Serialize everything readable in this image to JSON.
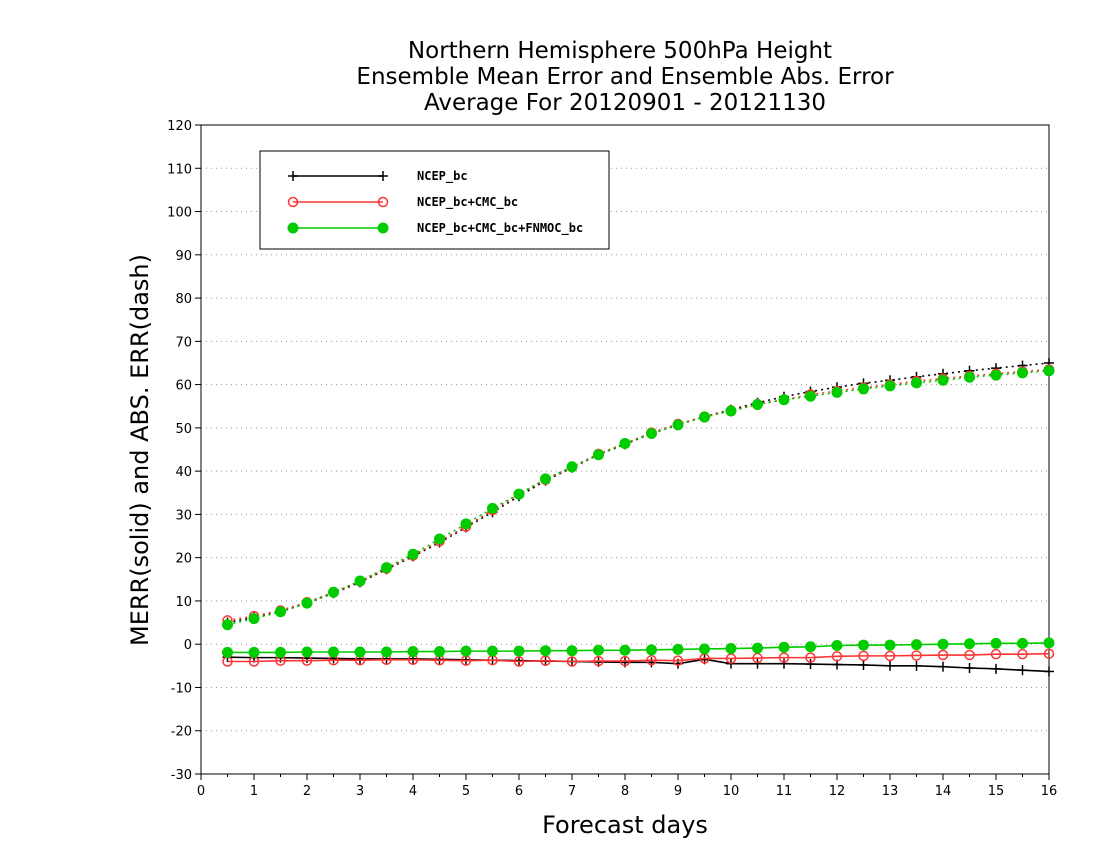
{
  "chart_data": {
    "type": "line",
    "title_lines": [
      "Northern Hemisphere 500hPa Height",
      "Ensemble Mean Error and Ensemble Abs. Error",
      "Average For 20120901 - 20121130"
    ],
    "xlabel": "Forecast days",
    "ylabel": "MERR(solid) and ABS. ERR(dash)",
    "xlim": [
      0,
      16
    ],
    "ylim": [
      -30,
      120
    ],
    "xticks": [
      0,
      1,
      2,
      3,
      4,
      5,
      6,
      7,
      8,
      9,
      10,
      11,
      12,
      13,
      14,
      15,
      16
    ],
    "yticks": [
      -30,
      -20,
      -10,
      0,
      10,
      20,
      30,
      40,
      50,
      60,
      70,
      80,
      90,
      100,
      110,
      120
    ],
    "grid": "horizontal dotted",
    "legend_position": "top-left",
    "x": [
      0.5,
      1,
      1.5,
      2,
      2.5,
      3,
      3.5,
      4,
      4.5,
      5,
      5.5,
      6,
      6.5,
      7,
      7.5,
      8,
      8.5,
      9,
      9.5,
      10,
      10.5,
      11,
      11.5,
      12,
      12.5,
      13,
      13.5,
      14,
      14.5,
      15,
      15.5,
      16
    ],
    "series": [
      {
        "name": "NCEP_bc",
        "color": "#000000",
        "marker": "plus",
        "abs_err": [
          5,
          6.2,
          7.5,
          9.5,
          11.8,
          14.3,
          17.3,
          20.3,
          23.5,
          27,
          30.5,
          34.2,
          37.8,
          40.8,
          43.8,
          46.2,
          48.7,
          50.7,
          52.6,
          54.2,
          55.8,
          57.2,
          58.4,
          59.4,
          60.3,
          61,
          61.8,
          62.5,
          63.2,
          63.8,
          64.4,
          65
        ],
        "mean_err": [
          -3,
          -3.1,
          -3.1,
          -3.2,
          -3.3,
          -3.4,
          -3.4,
          -3.4,
          -3.5,
          -3.6,
          -3.7,
          -3.8,
          -3.9,
          -4,
          -4.1,
          -4.2,
          -4.2,
          -4.5,
          -3.5,
          -4.5,
          -4.5,
          -4.5,
          -4.6,
          -4.7,
          -4.8,
          -5,
          -5,
          -5.2,
          -5.5,
          -5.7,
          -6,
          -6.3
        ]
      },
      {
        "name": "NCEP_bc+CMC_bc",
        "color": "#ff3333",
        "marker": "open-circle",
        "abs_err": [
          5.5,
          6.5,
          7.8,
          9.7,
          12,
          14.5,
          17.5,
          20.5,
          23.8,
          27.2,
          31,
          34.7,
          38,
          41,
          44,
          46.4,
          48.9,
          50.9,
          52.6,
          54,
          55.5,
          56.5,
          57.7,
          58.5,
          59.3,
          60,
          60.8,
          61.4,
          62,
          62.5,
          63,
          63.5
        ],
        "mean_err": [
          -4,
          -4,
          -3.8,
          -3.8,
          -3.7,
          -3.7,
          -3.6,
          -3.6,
          -3.7,
          -3.8,
          -3.7,
          -4,
          -3.8,
          -4,
          -3.9,
          -3.9,
          -3.7,
          -3.8,
          -3.3,
          -3.3,
          -3.2,
          -3.1,
          -3.1,
          -2.8,
          -2.7,
          -2.7,
          -2.6,
          -2.5,
          -2.5,
          -2.3,
          -2.3,
          -2.2
        ]
      },
      {
        "name": "NCEP_bc+CMC_bc+FNMOC_bc",
        "color": "#00cc00",
        "marker": "filled-circle",
        "abs_err": [
          4.5,
          5.9,
          7.5,
          9.5,
          12,
          14.6,
          17.7,
          20.8,
          24.3,
          27.8,
          31.4,
          34.7,
          38.2,
          41,
          43.8,
          46.4,
          48.7,
          50.7,
          52.5,
          53.9,
          55.4,
          56.5,
          57.3,
          58.2,
          59,
          59.7,
          60.4,
          61,
          61.7,
          62.2,
          62.7,
          63.2
        ],
        "mean_err": [
          -1.9,
          -1.9,
          -1.9,
          -1.8,
          -1.8,
          -1.8,
          -1.8,
          -1.7,
          -1.7,
          -1.6,
          -1.6,
          -1.6,
          -1.5,
          -1.5,
          -1.4,
          -1.4,
          -1.3,
          -1.2,
          -1.1,
          -1,
          -0.9,
          -0.7,
          -0.6,
          -0.3,
          -0.2,
          -0.2,
          -0.1,
          0,
          0.1,
          0.2,
          0.2,
          0.3
        ]
      }
    ]
  }
}
